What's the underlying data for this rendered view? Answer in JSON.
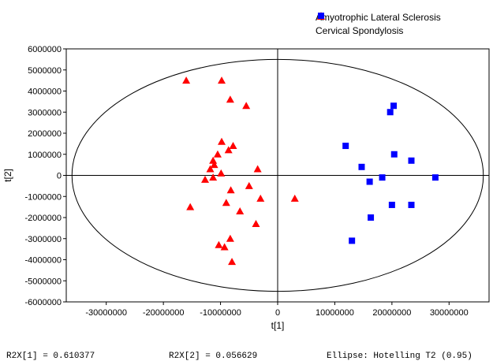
{
  "chart_data": {
    "type": "scatter",
    "title": "",
    "xlabel": "t[1]",
    "ylabel": "t[2]",
    "xlim": [
      -37000000,
      37000000
    ],
    "ylim": [
      -6000000,
      6000000
    ],
    "xticks": [
      -30000000,
      -20000000,
      -10000000,
      0,
      10000000,
      20000000,
      30000000
    ],
    "xtick_labels": [
      "-30000000",
      "-20000000",
      "-10000000",
      "0",
      "10000000",
      "20000000",
      "30000000"
    ],
    "yticks": [
      6000000,
      5000000,
      4000000,
      3000000,
      2000000,
      1000000,
      0,
      -1000000,
      -2000000,
      -3000000,
      -4000000,
      -5000000,
      -6000000
    ],
    "ytick_labels": [
      "6000000",
      "5000000",
      "4000000",
      "3000000",
      "2000000",
      "1000000",
      "0",
      "-1000000",
      "-2000000",
      "-3000000",
      "-4000000",
      "-5000000",
      "-6000000"
    ],
    "grid": false,
    "legend_position": "top-right",
    "ellipse": {
      "rx": 36000000,
      "ry": 5500000
    },
    "series": [
      {
        "name": "Amyotrophic Lateral Sclerosis",
        "marker": "triangle",
        "color": "#ff0000",
        "points": [
          [
            -16000000,
            4500000
          ],
          [
            -9800000,
            4500000
          ],
          [
            -8300000,
            3600000
          ],
          [
            -5500000,
            3300000
          ],
          [
            -9800000,
            1600000
          ],
          [
            -7800000,
            1400000
          ],
          [
            -8600000,
            1200000
          ],
          [
            -10500000,
            1000000
          ],
          [
            -11300000,
            700000
          ],
          [
            -11100000,
            500000
          ],
          [
            -11800000,
            300000
          ],
          [
            -9900000,
            100000
          ],
          [
            -3500000,
            300000
          ],
          [
            -11300000,
            -100000
          ],
          [
            -12700000,
            -200000
          ],
          [
            -8200000,
            -700000
          ],
          [
            -5000000,
            -500000
          ],
          [
            -3000000,
            -1100000
          ],
          [
            -15300000,
            -1500000
          ],
          [
            -9000000,
            -1300000
          ],
          [
            -6600000,
            -1700000
          ],
          [
            -3800000,
            -2300000
          ],
          [
            -8300000,
            -3000000
          ],
          [
            -10300000,
            -3300000
          ],
          [
            -9300000,
            -3400000
          ],
          [
            -8000000,
            -4100000
          ],
          [
            3000000,
            -1100000
          ]
        ]
      },
      {
        "name": "Cervical Spondylosis",
        "marker": "square",
        "color": "#0000ff",
        "points": [
          [
            20300000,
            3300000
          ],
          [
            19700000,
            3000000
          ],
          [
            11900000,
            1400000
          ],
          [
            20400000,
            1000000
          ],
          [
            23400000,
            700000
          ],
          [
            14700000,
            400000
          ],
          [
            27600000,
            -100000
          ],
          [
            18300000,
            -100000
          ],
          [
            16100000,
            -300000
          ],
          [
            20000000,
            -1400000
          ],
          [
            23400000,
            -1400000
          ],
          [
            16300000,
            -2000000
          ],
          [
            13000000,
            -3100000
          ]
        ]
      }
    ]
  },
  "footer": {
    "r2x1": "R2X[1] = 0.610377",
    "r2x2": "R2X[2] = 0.056629",
    "ellipse_label": "Ellipse: Hotelling T2 (0.95)"
  }
}
